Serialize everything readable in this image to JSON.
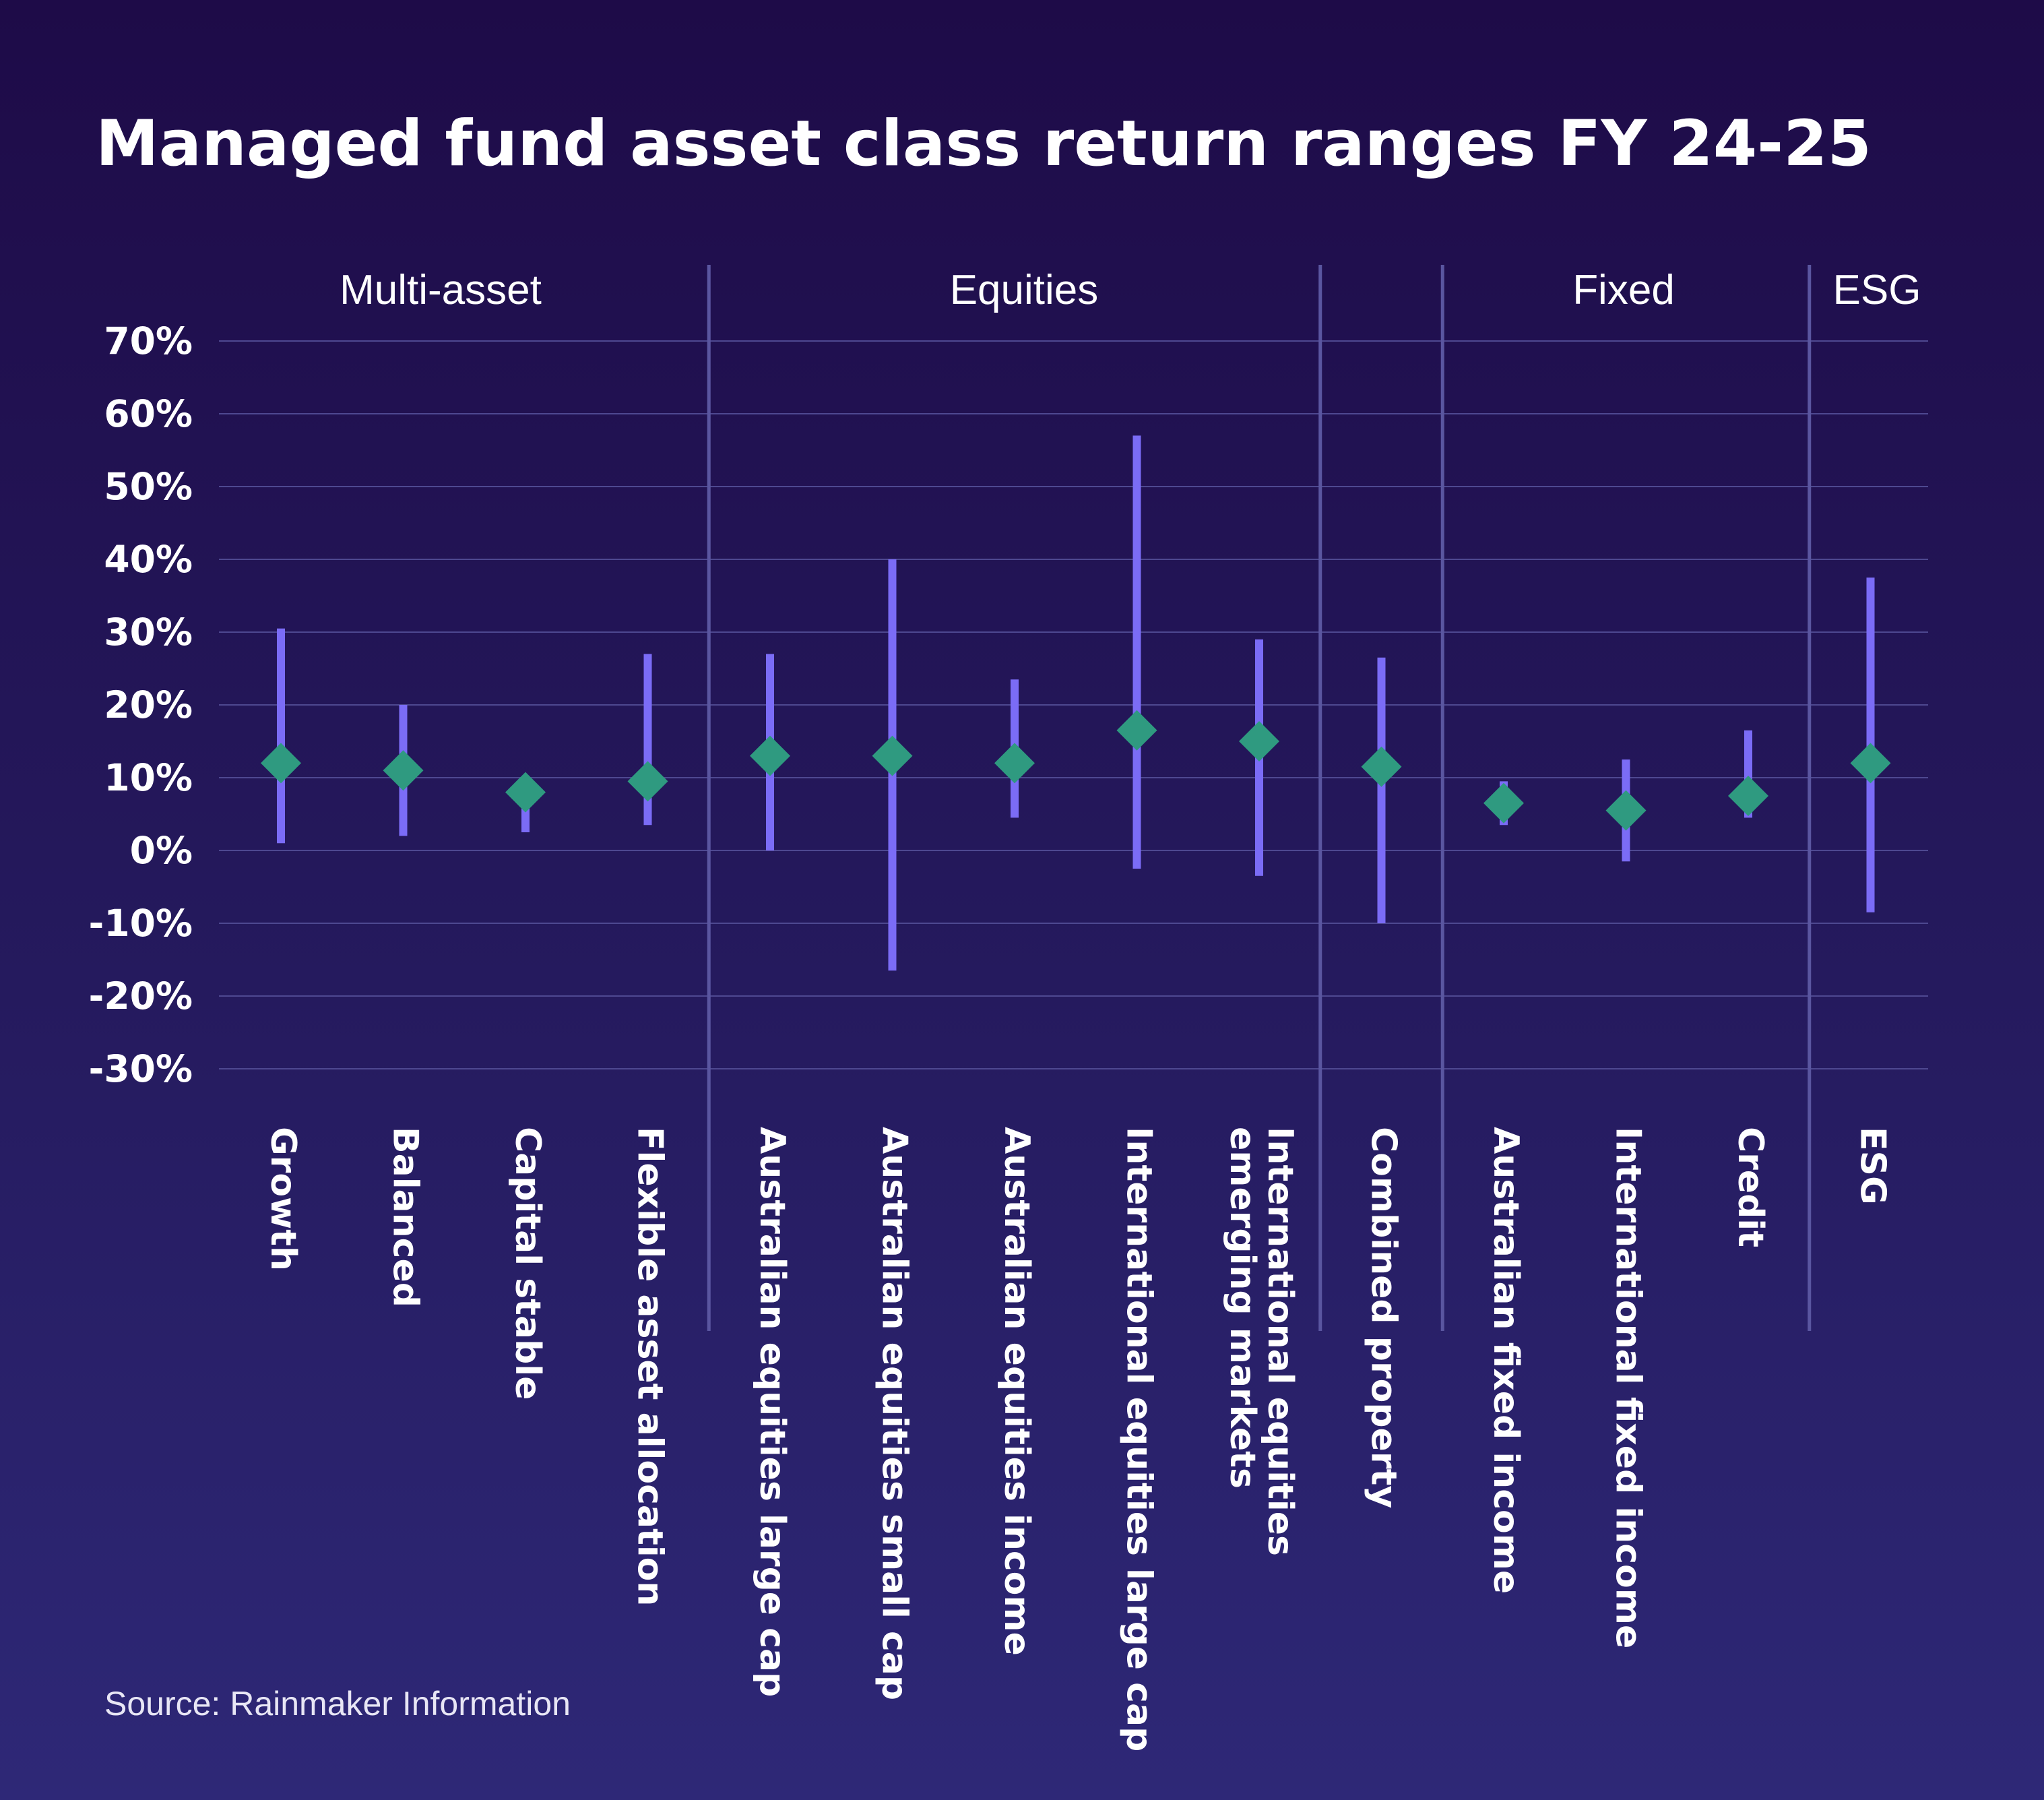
{
  "chart_data": {
    "type": "range",
    "title": "Managed fund asset class return ranges FY 24-25",
    "source": "Source: Rainmaker Information",
    "ylim": [
      -30,
      70
    ],
    "ytick_values": [
      70,
      60,
      50,
      40,
      30,
      20,
      10,
      0,
      -10,
      -20,
      -30
    ],
    "ytick_labels": [
      "70%",
      "60%",
      "50%",
      "40%",
      "30%",
      "20%",
      "10%",
      "0%",
      "-10%",
      "-20%",
      "-30%"
    ],
    "grid": true,
    "groups": [
      "Multi-asset",
      "Equities",
      "Fixed",
      "ESG"
    ],
    "categories": [
      {
        "lines": [
          "Growth"
        ],
        "min": 1,
        "max": 30.5,
        "median": 12
      },
      {
        "lines": [
          "Balanced"
        ],
        "min": 2,
        "max": 20,
        "median": 11
      },
      {
        "lines": [
          "Capital stable"
        ],
        "min": 2.5,
        "max": 8,
        "median": 8
      },
      {
        "lines": [
          "Flexible asset allocation"
        ],
        "min": 3.5,
        "max": 27,
        "median": 9.5
      },
      {
        "lines": [
          "Australian equities large cap"
        ],
        "min": 0,
        "max": 27,
        "median": 13
      },
      {
        "lines": [
          "Australian equities small cap"
        ],
        "min": -16.5,
        "max": 40,
        "median": 13
      },
      {
        "lines": [
          "Australian equities income"
        ],
        "min": 4.5,
        "max": 23.5,
        "median": 12
      },
      {
        "lines": [
          "International equities large cap"
        ],
        "min": -2.5,
        "max": 57,
        "median": 16.5
      },
      {
        "lines": [
          "International equities",
          "emerging markets"
        ],
        "min": -3.5,
        "max": 29,
        "median": 15
      },
      {
        "lines": [
          "Combined property"
        ],
        "min": -10,
        "max": 26.5,
        "median": 11.5
      },
      {
        "lines": [
          "Australian fixed income"
        ],
        "min": 3.5,
        "max": 9.5,
        "median": 6.5
      },
      {
        "lines": [
          "International fixed income"
        ],
        "min": -1.5,
        "max": 12.5,
        "median": 5.5
      },
      {
        "lines": [
          "Credit"
        ],
        "min": 4.5,
        "max": 16.5,
        "median": 7.5
      },
      {
        "lines": [
          "ESG"
        ],
        "min": -8.5,
        "max": 37.5,
        "median": 12
      }
    ],
    "colors": {
      "range_bar": "#7b6cf6",
      "marker": "#2f9a80",
      "gridline": "#4e4890",
      "separator": "#5a56a0"
    }
  }
}
